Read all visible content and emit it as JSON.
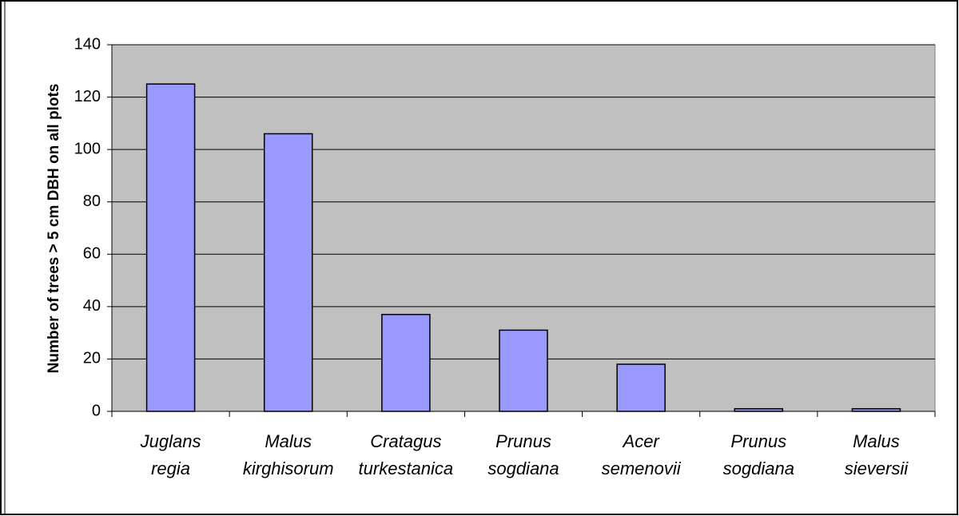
{
  "chart_data": {
    "type": "bar",
    "y_label": "Number of trees > 5 cm DBH on all plots",
    "categories": [
      "Juglans regia",
      "Malus kirghisorum",
      "Cratagus turkestanica",
      "Prunus sogdiana",
      "Acer semenovii",
      "Prunus sogdiana",
      "Malus sieversii"
    ],
    "values": [
      125,
      106,
      37,
      31,
      18,
      1,
      1
    ],
    "color": "#9999ff",
    "ylim": [
      0,
      140
    ],
    "yticks": [
      0,
      20,
      40,
      60,
      80,
      100,
      120,
      140
    ],
    "grid": true
  }
}
